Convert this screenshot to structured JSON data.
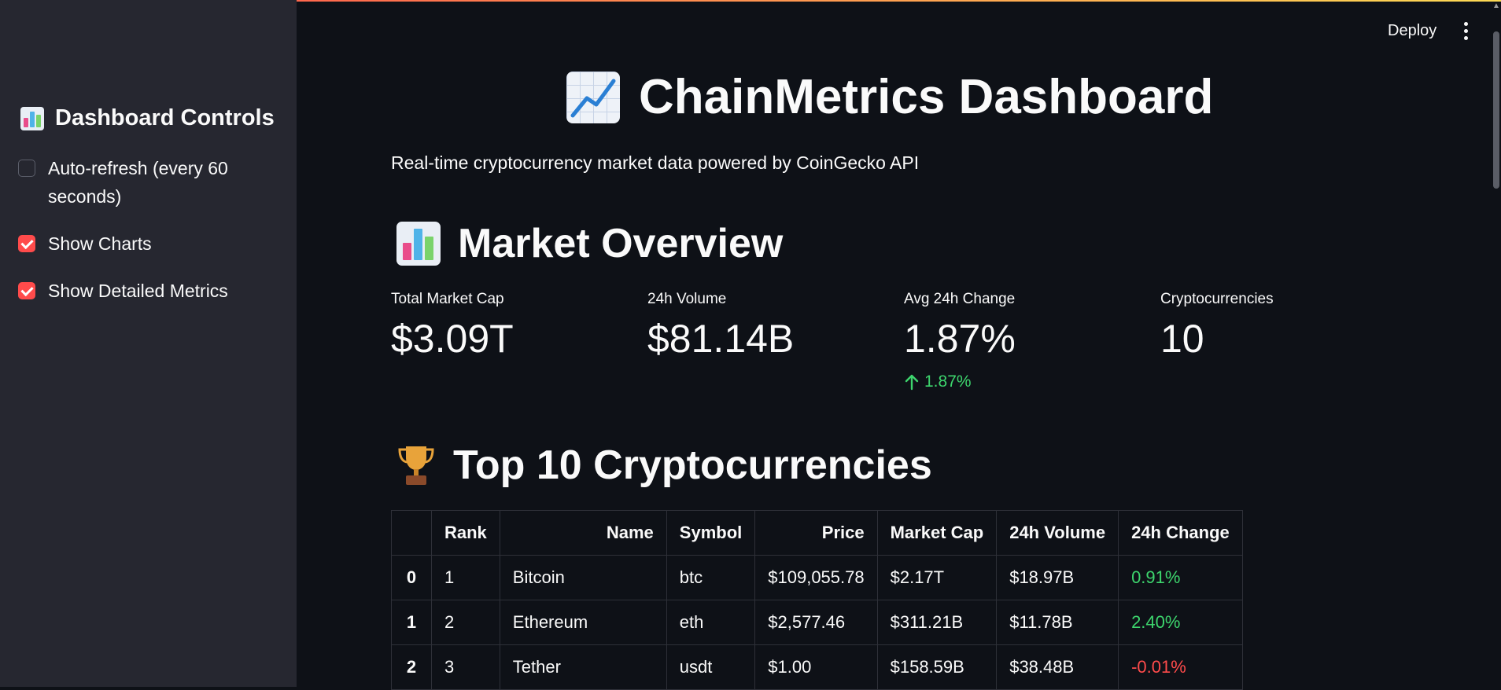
{
  "header": {
    "deploy_label": "Deploy"
  },
  "sidebar": {
    "title": "Dashboard Controls",
    "checkboxes": [
      {
        "label": "Auto-refresh (every 60 seconds)",
        "checked": false
      },
      {
        "label": "Show Charts",
        "checked": true
      },
      {
        "label": "Show Detailed Metrics",
        "checked": true
      }
    ]
  },
  "main": {
    "title": "ChainMetrics Dashboard",
    "subtitle": "Real-time cryptocurrency market data powered by CoinGecko API",
    "overview": {
      "heading": "Market Overview",
      "metrics": [
        {
          "label": "Total Market Cap",
          "value": "$3.09T"
        },
        {
          "label": "24h Volume",
          "value": "$81.14B"
        },
        {
          "label": "Avg 24h Change",
          "value": "1.87%",
          "delta": "1.87%"
        },
        {
          "label": "Cryptocurrencies",
          "value": "10"
        }
      ]
    },
    "top": {
      "heading": "Top 10 Cryptocurrencies",
      "columns": [
        "",
        "Rank",
        "Name",
        "Symbol",
        "Price",
        "Market Cap",
        "24h Volume",
        "24h Change"
      ],
      "rows": [
        {
          "index": "0",
          "rank": "1",
          "name": "Bitcoin",
          "symbol": "btc",
          "price": "$109,055.78",
          "market_cap": "$2.17T",
          "volume": "$18.97B",
          "change": "0.91%"
        },
        {
          "index": "1",
          "rank": "2",
          "name": "Ethereum",
          "symbol": "eth",
          "price": "$2,577.46",
          "market_cap": "$311.21B",
          "volume": "$11.78B",
          "change": "2.40%"
        },
        {
          "index": "2",
          "rank": "3",
          "name": "Tether",
          "symbol": "usdt",
          "price": "$1.00",
          "market_cap": "$158.59B",
          "volume": "$38.48B",
          "change": "-0.01%"
        }
      ]
    }
  },
  "colors": {
    "accent": "#ff4b4b",
    "positive": "#3dd56d",
    "negative": "#ff4b4b",
    "sidebar_bg": "#262730",
    "main_bg": "#0e1117"
  }
}
